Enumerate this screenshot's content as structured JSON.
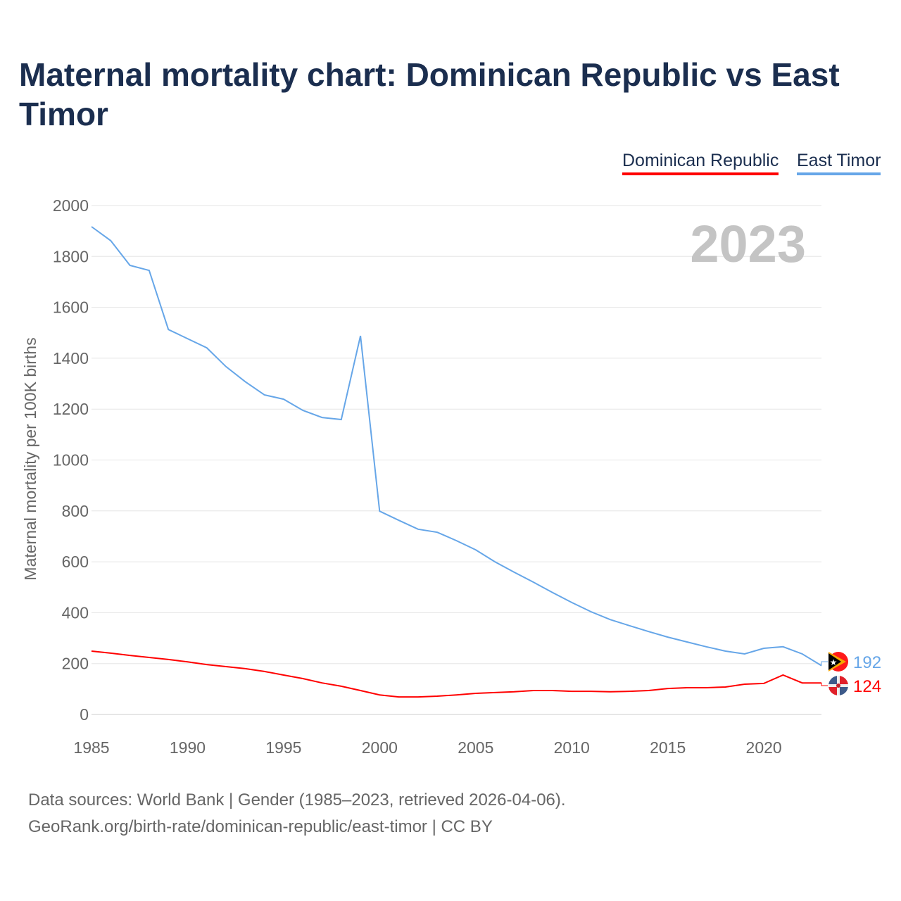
{
  "title": "Maternal mortality chart: Dominican Republic vs East Timor",
  "colors": {
    "dominican": "#ff0000",
    "timor": "#66a6e8"
  },
  "footer": {
    "line1": "Data sources: World Bank | Gender (1985–2023, retrieved 2026-04-06).",
    "line2": "GeoRank.org/birth-rate/dominican-republic/east-timor | CC BY"
  },
  "chart_data": {
    "type": "line",
    "title": "Maternal mortality chart: Dominican Republic vs East Timor",
    "ylabel": "Maternal mortality per 100K births",
    "xlabel": "",
    "year_label": "2023",
    "ylim": [
      0,
      2000
    ],
    "xlim": [
      1985,
      2023
    ],
    "yticks": [
      0,
      200,
      400,
      600,
      800,
      1000,
      1200,
      1400,
      1600,
      1800,
      2000
    ],
    "xticks": [
      1985,
      1990,
      1995,
      2000,
      2005,
      2010,
      2015,
      2020
    ],
    "grid": true,
    "legend_position": "top-right",
    "x": [
      1985,
      1986,
      1987,
      1988,
      1989,
      1990,
      1991,
      1992,
      1993,
      1994,
      1995,
      1996,
      1997,
      1998,
      1999,
      2000,
      2001,
      2002,
      2003,
      2004,
      2005,
      2006,
      2007,
      2008,
      2009,
      2010,
      2011,
      2012,
      2013,
      2014,
      2015,
      2016,
      2017,
      2018,
      2019,
      2020,
      2021,
      2022,
      2023
    ],
    "series": [
      {
        "name": "Dominican Republic",
        "end_label": "124",
        "values": [
          249,
          241,
          232,
          224,
          216,
          207,
          196,
          188,
          180,
          169,
          155,
          141,
          124,
          111,
          94,
          77,
          69,
          69,
          72,
          77,
          83,
          86,
          89,
          94,
          94,
          91,
          91,
          89,
          91,
          94,
          102,
          105,
          105,
          108,
          119,
          122,
          155,
          124,
          124
        ]
      },
      {
        "name": "East Timor",
        "end_label": "192",
        "values": [
          1917,
          1862,
          1765,
          1745,
          1513,
          1477,
          1441,
          1367,
          1308,
          1256,
          1239,
          1195,
          1167,
          1159,
          1488,
          799,
          763,
          728,
          716,
          683,
          647,
          600,
          559,
          520,
          479,
          440,
          404,
          373,
          349,
          326,
          304,
          285,
          266,
          249,
          238,
          260,
          266,
          238,
          192
        ]
      }
    ]
  }
}
